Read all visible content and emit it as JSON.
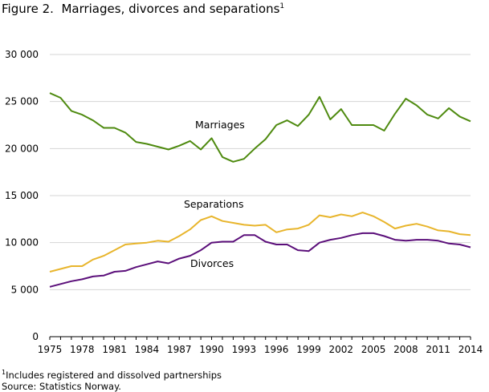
{
  "figure": {
    "title_prefix": "Figure 2.",
    "title_text": "Marriages, divorces and separations",
    "title_footnote_mark": "1"
  },
  "footnotes": {
    "note_mark": "1",
    "note_text": "Includes registered and dissolved partnerships",
    "source": "Source: Statistics Norway."
  },
  "chart_data": {
    "type": "line",
    "x": [
      1975,
      1976,
      1977,
      1978,
      1979,
      1980,
      1981,
      1982,
      1983,
      1984,
      1985,
      1986,
      1987,
      1988,
      1989,
      1990,
      1991,
      1992,
      1993,
      1994,
      1995,
      1996,
      1997,
      1998,
      1999,
      2000,
      2001,
      2002,
      2003,
      2004,
      2005,
      2006,
      2007,
      2008,
      2009,
      2010,
      2011,
      2012,
      2013,
      2014
    ],
    "xticks": [
      1975,
      1978,
      1981,
      1984,
      1987,
      1990,
      1993,
      1996,
      1999,
      2002,
      2005,
      2008,
      2011,
      2014
    ],
    "xlim": [
      1975,
      2014
    ],
    "ylim": [
      0,
      30000
    ],
    "yticks": [
      0,
      5000,
      10000,
      15000,
      20000,
      25000,
      30000
    ],
    "ytick_labels": [
      "0",
      "5 000",
      "10 000",
      "15 000",
      "20 000",
      "25 000",
      "30 000"
    ],
    "grid": "horizontal",
    "series": [
      {
        "name": "Marriages",
        "color": "#4e8a0f",
        "values": [
          25900,
          25400,
          24000,
          23600,
          23000,
          22200,
          22200,
          21700,
          20700,
          20500,
          20200,
          19900,
          20300,
          20800,
          19900,
          21100,
          19100,
          18600,
          18900,
          20000,
          21000,
          22500,
          23000,
          22400,
          23600,
          25500,
          23100,
          24200,
          22500,
          22500,
          22500,
          21900,
          23700,
          25300,
          24600,
          23600,
          23200,
          24300,
          23400,
          22900
        ]
      },
      {
        "name": "Separations",
        "color": "#e8b52c",
        "values": [
          6900,
          7200,
          7500,
          7500,
          8200,
          8600,
          9200,
          9800,
          9900,
          10000,
          10200,
          10100,
          10700,
          11400,
          12400,
          12800,
          12300,
          12100,
          11900,
          11800,
          11900,
          11100,
          11400,
          11500,
          11900,
          12900,
          12700,
          13000,
          12800,
          13200,
          12800,
          12200,
          11500,
          11800,
          12000,
          11700,
          11300,
          11200,
          10900,
          10800
        ]
      },
      {
        "name": "Divorces",
        "color": "#5b0f7a",
        "values": [
          5300,
          5600,
          5900,
          6100,
          6400,
          6500,
          6900,
          7000,
          7400,
          7700,
          8000,
          7800,
          8300,
          8600,
          9200,
          10000,
          10100,
          10100,
          10800,
          10800,
          10100,
          9800,
          9800,
          9200,
          9100,
          10000,
          10300,
          10500,
          10800,
          11000,
          11000,
          10700,
          10300,
          10200,
          10300,
          10300,
          10200,
          9900,
          9800,
          9500
        ]
      }
    ],
    "annotations": [
      "Marriages",
      "Separations",
      "Divorces"
    ]
  }
}
